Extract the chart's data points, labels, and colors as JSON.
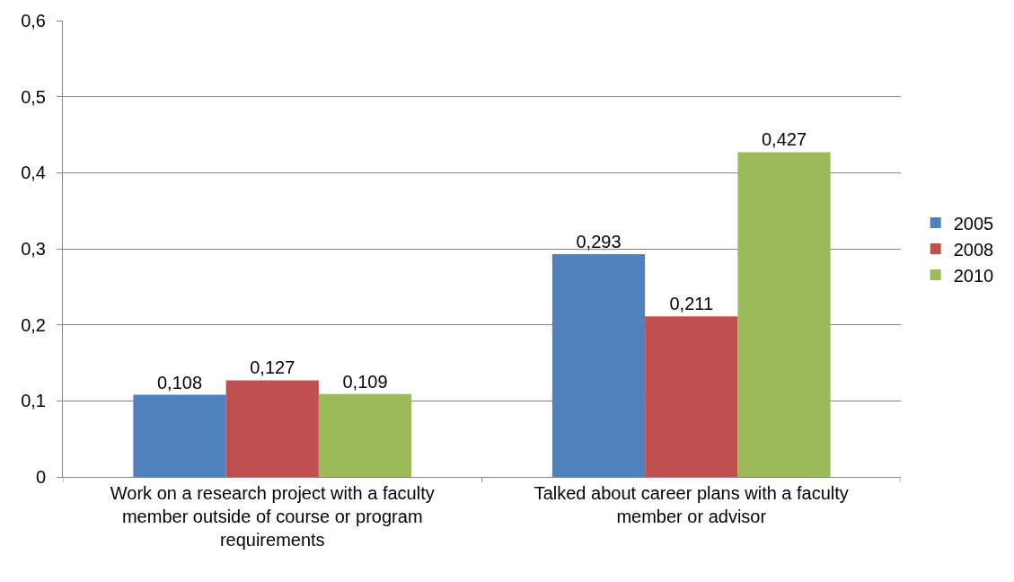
{
  "chart_data": {
    "type": "bar",
    "categories": [
      "Work on a research project with a faculty member outside of course or program requirements",
      "Talked about career plans with a faculty member or advisor"
    ],
    "series": [
      {
        "name": "2005",
        "color": "#4f81bd",
        "values": [
          0.108,
          0.293
        ],
        "value_labels": [
          "0,108",
          "0,293"
        ]
      },
      {
        "name": "2008",
        "color": "#c0504d",
        "values": [
          0.127,
          0.211
        ],
        "value_labels": [
          "0,127",
          "0,211"
        ]
      },
      {
        "name": "2010",
        "color": "#9bbb59",
        "values": [
          0.109,
          0.427
        ],
        "value_labels": [
          "0,109",
          "0,427"
        ]
      }
    ],
    "ylim": [
      0,
      0.6
    ],
    "yticks": [
      0,
      {
        "value": 0.1,
        "label": "0,1"
      },
      {
        "value": 0.2,
        "label": "0,2"
      },
      {
        "value": 0.3,
        "label": "0,3"
      },
      {
        "value": 0.4,
        "label": "0,4"
      },
      {
        "value": 0.5,
        "label": "0,5"
      },
      {
        "value": 0.6,
        "label": "0,6"
      }
    ],
    "grid": "y",
    "legend": "right"
  }
}
